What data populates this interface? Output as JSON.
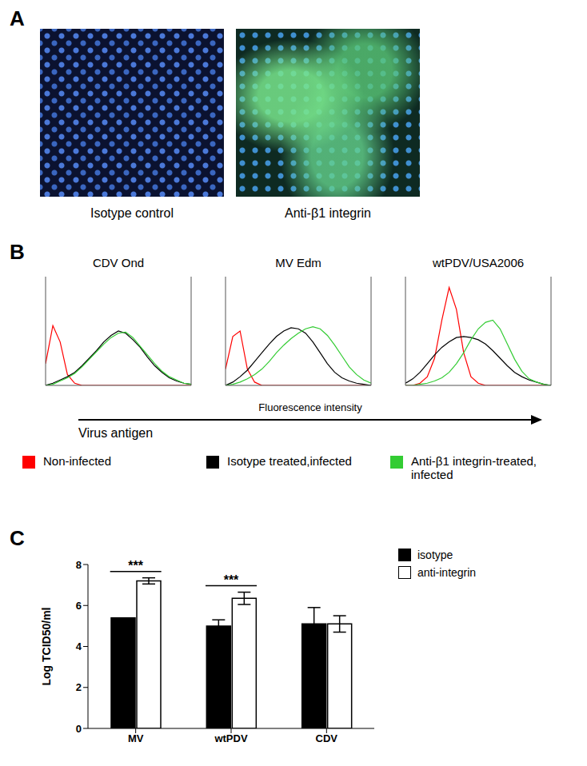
{
  "panels": {
    "labels": [
      "A",
      "B",
      "C"
    ]
  },
  "panel_a": {
    "images": [
      "Isotype control",
      "Anti-β1 integrin"
    ]
  },
  "panel_b": {
    "xlabel": "Fluorescence intensity",
    "arrow_label": "Virus antigen"
  },
  "chart_data": [
    {
      "type": "line",
      "title": "CDV Ond",
      "x": [
        0,
        5,
        10,
        15,
        20,
        25,
        30,
        35,
        40,
        45,
        50,
        55,
        60,
        65,
        70,
        75,
        80,
        85,
        90,
        95,
        100
      ],
      "xlim": [
        0,
        100
      ],
      "ylim": [
        0,
        100
      ],
      "tick_labels": false,
      "series": [
        {
          "name": "Non-infected",
          "color": "#ff0000",
          "values": [
            20,
            55,
            40,
            10,
            2,
            0,
            0,
            0,
            0,
            0,
            0,
            0,
            0,
            0,
            0,
            0,
            0,
            0,
            0,
            0,
            0
          ]
        },
        {
          "name": "Isotype treated,infected",
          "color": "#000000",
          "values": [
            0,
            2,
            5,
            8,
            12,
            18,
            25,
            32,
            40,
            46,
            50,
            48,
            42,
            35,
            26,
            18,
            12,
            7,
            4,
            2,
            1
          ]
        },
        {
          "name": "Anti-β1 integrin-treated, infected",
          "color": "#33cc33",
          "values": [
            0,
            1,
            4,
            7,
            11,
            17,
            24,
            31,
            38,
            44,
            48,
            49,
            44,
            36,
            28,
            20,
            13,
            8,
            5,
            2,
            1
          ]
        }
      ]
    },
    {
      "type": "line",
      "title": "MV Edm",
      "x": [
        0,
        5,
        10,
        15,
        20,
        25,
        30,
        35,
        40,
        45,
        50,
        55,
        60,
        65,
        70,
        75,
        80,
        85,
        90,
        95,
        100
      ],
      "xlim": [
        0,
        100
      ],
      "ylim": [
        0,
        100
      ],
      "tick_labels": false,
      "series": [
        {
          "name": "Non-infected",
          "color": "#ff0000",
          "values": [
            15,
            45,
            50,
            15,
            3,
            0,
            0,
            0,
            0,
            0,
            0,
            0,
            0,
            0,
            0,
            0,
            0,
            0,
            0,
            0,
            0
          ]
        },
        {
          "name": "Isotype treated,infected",
          "color": "#000000",
          "values": [
            0,
            3,
            8,
            14,
            22,
            30,
            38,
            45,
            50,
            53,
            52,
            48,
            40,
            30,
            20,
            12,
            7,
            4,
            2,
            1,
            0
          ]
        },
        {
          "name": "Anti-β1 integrin-treated, infected",
          "color": "#33cc33",
          "values": [
            0,
            1,
            3,
            6,
            10,
            15,
            22,
            30,
            37,
            43,
            48,
            52,
            54,
            52,
            46,
            37,
            27,
            17,
            10,
            5,
            2
          ]
        }
      ]
    },
    {
      "type": "line",
      "title": "wtPDV/USA2006",
      "x": [
        0,
        5,
        10,
        15,
        20,
        25,
        30,
        35,
        40,
        45,
        50,
        55,
        60,
        65,
        70,
        75,
        80,
        85,
        90,
        95,
        100
      ],
      "xlim": [
        0,
        100
      ],
      "ylim": [
        0,
        100
      ],
      "tick_labels": false,
      "series": [
        {
          "name": "Non-infected",
          "color": "#ff0000",
          "values": [
            0,
            0,
            2,
            8,
            25,
            60,
            90,
            70,
            30,
            8,
            2,
            0,
            0,
            0,
            0,
            0,
            0,
            0,
            0,
            0,
            0
          ]
        },
        {
          "name": "Isotype treated,infected",
          "color": "#000000",
          "values": [
            2,
            6,
            12,
            20,
            28,
            35,
            40,
            44,
            45,
            44,
            42,
            38,
            32,
            25,
            18,
            12,
            8,
            5,
            3,
            1,
            0
          ]
        },
        {
          "name": "Anti-β1 integrin-treated, infected",
          "color": "#33cc33",
          "values": [
            0,
            0,
            1,
            2,
            4,
            7,
            12,
            20,
            30,
            42,
            52,
            58,
            60,
            52,
            38,
            24,
            13,
            6,
            3,
            1,
            0
          ]
        }
      ]
    },
    {
      "type": "bar",
      "categories": [
        "MV",
        "wtPDV",
        "CDV"
      ],
      "ylabel": "Log TCID50/ml",
      "ylim": [
        0,
        8
      ],
      "yticks": [
        0,
        2,
        4,
        6,
        8
      ],
      "legend": "right",
      "series": [
        {
          "name": "isotype",
          "color": "#000000",
          "values": [
            5.4,
            5.0,
            5.1
          ],
          "errors": [
            0,
            0.3,
            0.8
          ]
        },
        {
          "name": "anti-integrin",
          "color": "#ffffff",
          "values": [
            7.2,
            6.35,
            5.1
          ],
          "errors": [
            0.15,
            0.3,
            0.4
          ]
        }
      ],
      "annotations": [
        {
          "category": "MV",
          "label": "***"
        },
        {
          "category": "wtPDV",
          "label": "***"
        }
      ]
    }
  ]
}
